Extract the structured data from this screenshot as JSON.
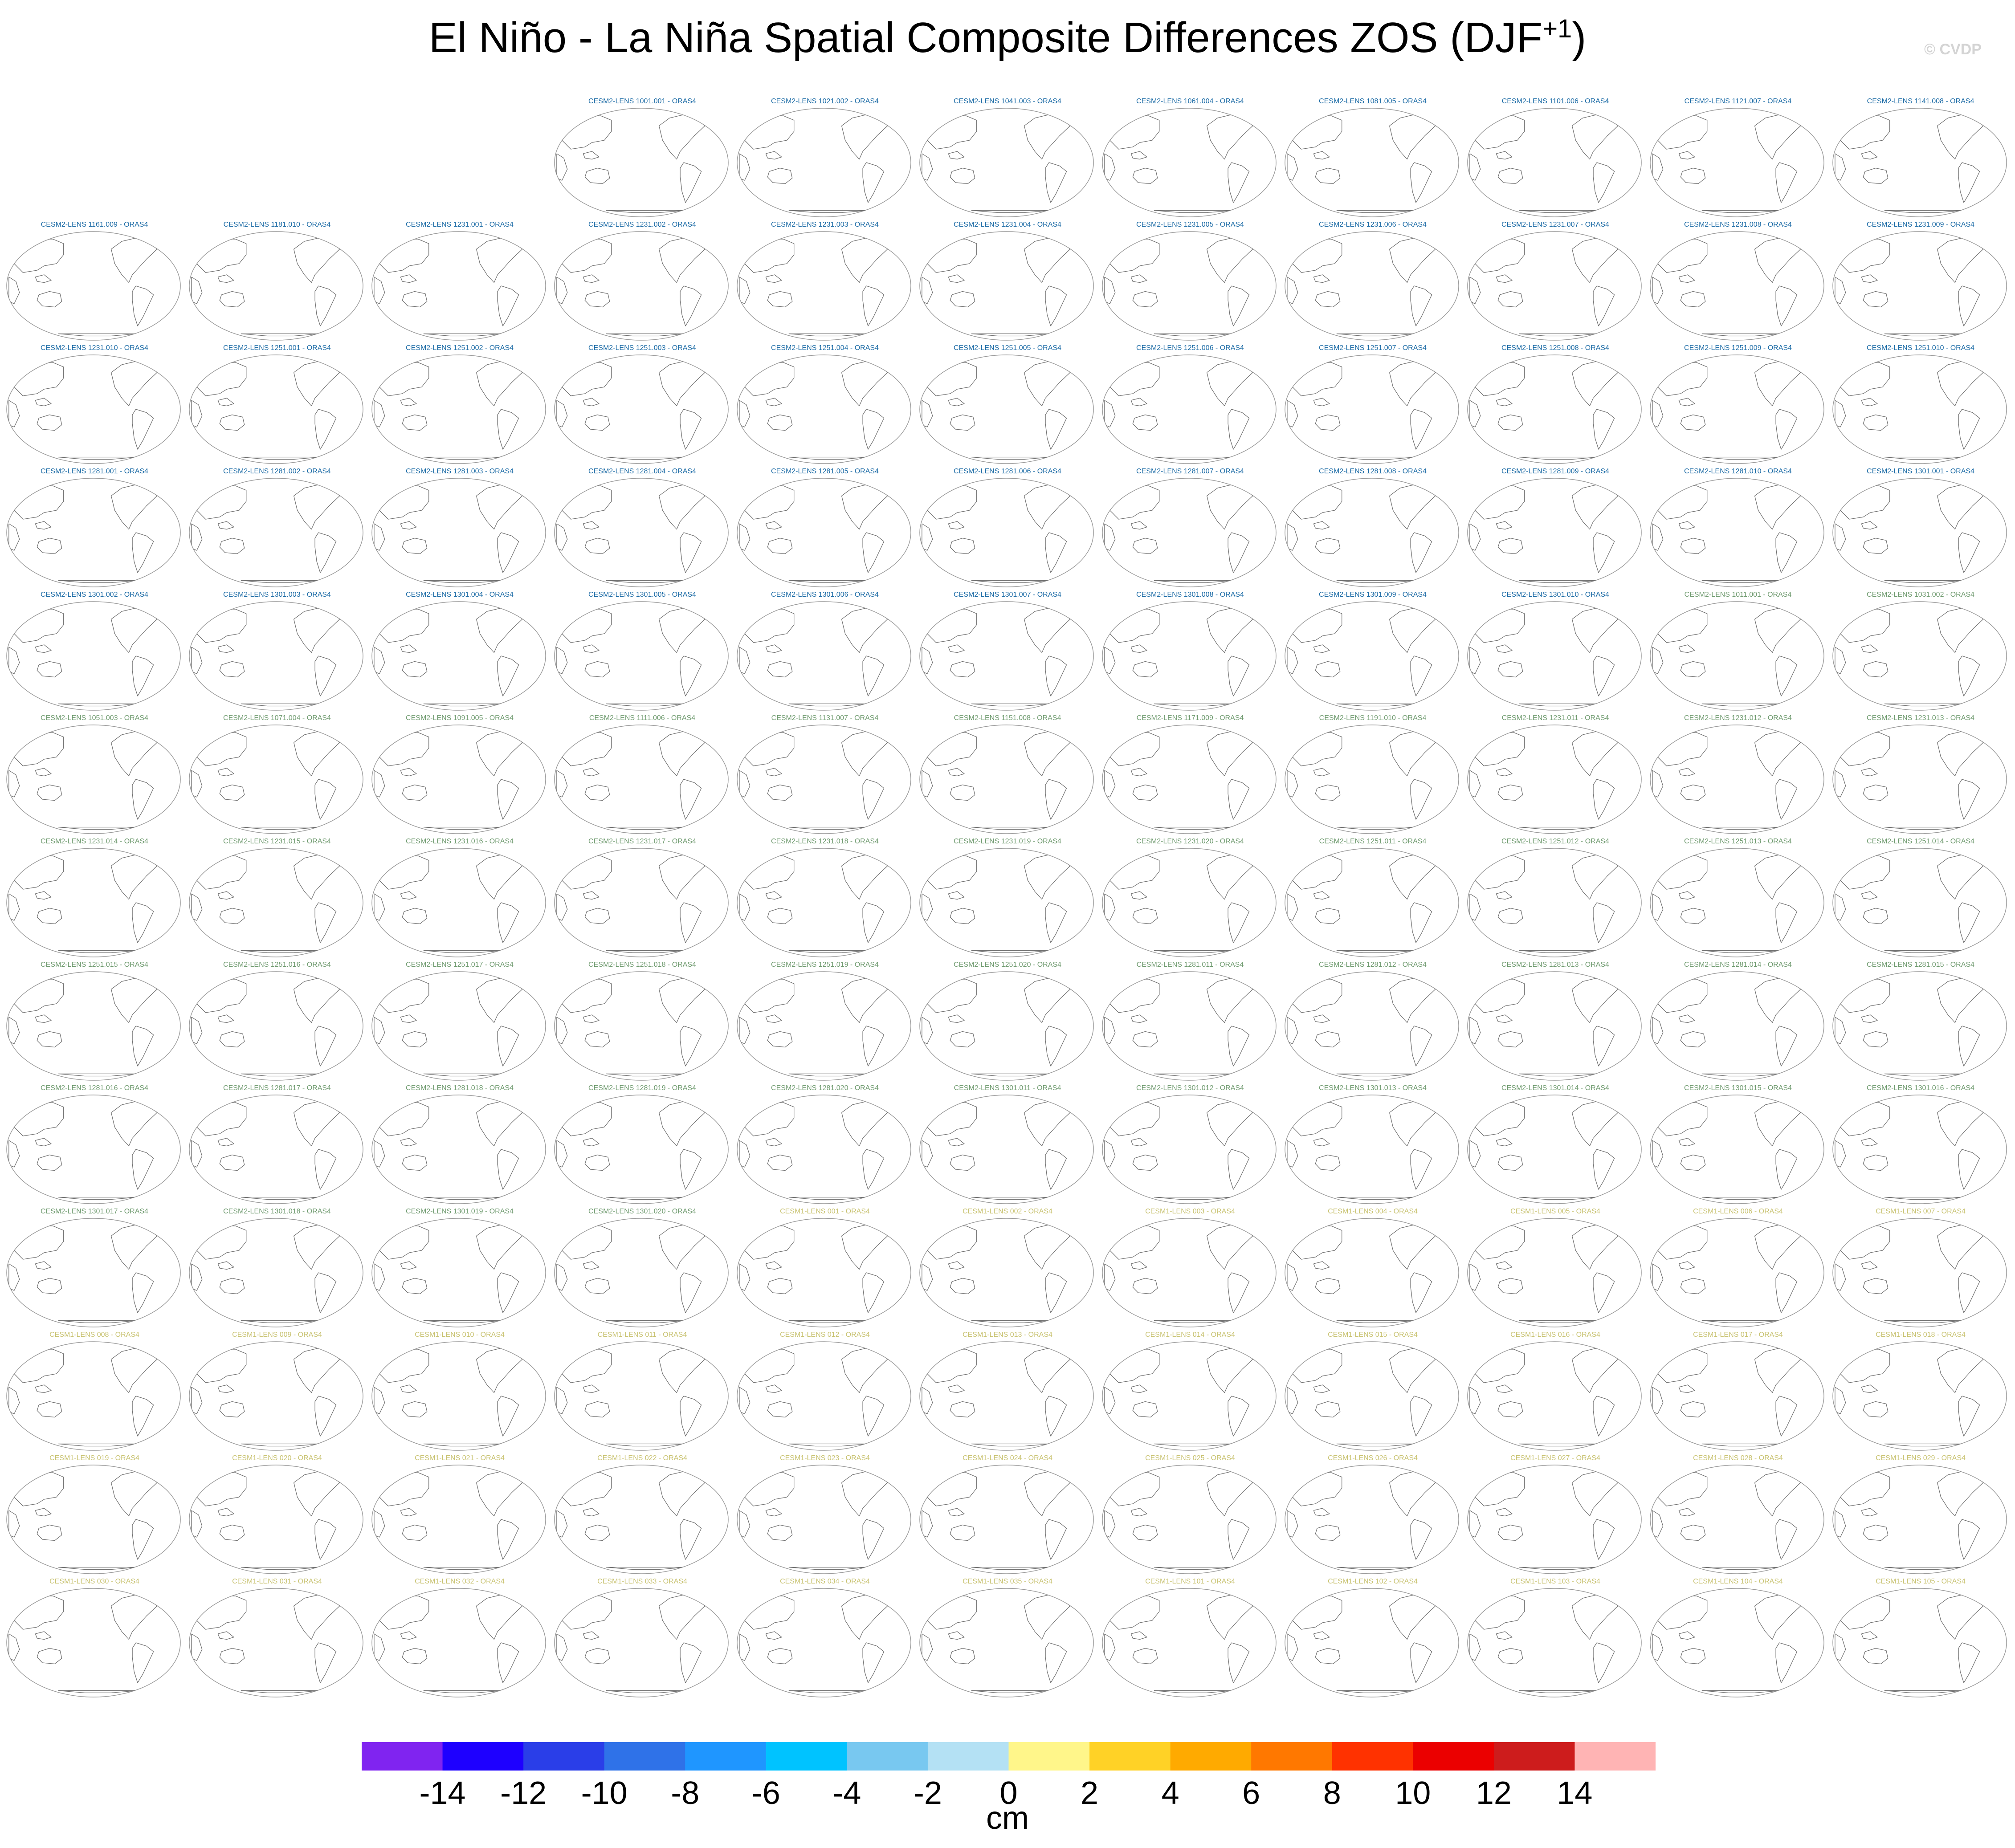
{
  "figure": {
    "title_main": "El Niño - La Niña Spatial Composite Differences ZOS (DJF",
    "title_sup": "+1",
    "title_end": ")",
    "copyright": "© CVDP"
  },
  "panel_colors": {
    "cesm2_first": "#1a6aa5",
    "cesm2_second": "#6e9a6e",
    "cesm1": "#c8c270",
    "coastline": "#6f6f6f",
    "border": "#9a9a9a"
  },
  "panels": [
    {
      "label": "CESM2-LENS 1001.001 - ORAS4",
      "group": "cesm2_first"
    },
    {
      "label": "CESM2-LENS 1021.002 - ORAS4",
      "group": "cesm2_first"
    },
    {
      "label": "CESM2-LENS 1041.003 - ORAS4",
      "group": "cesm2_first"
    },
    {
      "label": "CESM2-LENS 1061.004 - ORAS4",
      "group": "cesm2_first"
    },
    {
      "label": "CESM2-LENS 1081.005 - ORAS4",
      "group": "cesm2_first"
    },
    {
      "label": "CESM2-LENS 1101.006 - ORAS4",
      "group": "cesm2_first"
    },
    {
      "label": "CESM2-LENS 1121.007 - ORAS4",
      "group": "cesm2_first"
    },
    {
      "label": "CESM2-LENS 1141.008 - ORAS4",
      "group": "cesm2_first"
    },
    {
      "label": "CESM2-LENS 1161.009 - ORAS4",
      "group": "cesm2_first"
    },
    {
      "label": "CESM2-LENS 1181.010 - ORAS4",
      "group": "cesm2_first"
    },
    {
      "label": "CESM2-LENS 1231.001 - ORAS4",
      "group": "cesm2_first"
    },
    {
      "label": "CESM2-LENS 1231.002 - ORAS4",
      "group": "cesm2_first"
    },
    {
      "label": "CESM2-LENS 1231.003 - ORAS4",
      "group": "cesm2_first"
    },
    {
      "label": "CESM2-LENS 1231.004 - ORAS4",
      "group": "cesm2_first"
    },
    {
      "label": "CESM2-LENS 1231.005 - ORAS4",
      "group": "cesm2_first"
    },
    {
      "label": "CESM2-LENS 1231.006 - ORAS4",
      "group": "cesm2_first"
    },
    {
      "label": "CESM2-LENS 1231.007 - ORAS4",
      "group": "cesm2_first"
    },
    {
      "label": "CESM2-LENS 1231.008 - ORAS4",
      "group": "cesm2_first"
    },
    {
      "label": "CESM2-LENS 1231.009 - ORAS4",
      "group": "cesm2_first"
    },
    {
      "label": "CESM2-LENS 1231.010 - ORAS4",
      "group": "cesm2_first"
    },
    {
      "label": "CESM2-LENS 1251.001 - ORAS4",
      "group": "cesm2_first"
    },
    {
      "label": "CESM2-LENS 1251.002 - ORAS4",
      "group": "cesm2_first"
    },
    {
      "label": "CESM2-LENS 1251.003 - ORAS4",
      "group": "cesm2_first"
    },
    {
      "label": "CESM2-LENS 1251.004 - ORAS4",
      "group": "cesm2_first"
    },
    {
      "label": "CESM2-LENS 1251.005 - ORAS4",
      "group": "cesm2_first"
    },
    {
      "label": "CESM2-LENS 1251.006 - ORAS4",
      "group": "cesm2_first"
    },
    {
      "label": "CESM2-LENS 1251.007 - ORAS4",
      "group": "cesm2_first"
    },
    {
      "label": "CESM2-LENS 1251.008 - ORAS4",
      "group": "cesm2_first"
    },
    {
      "label": "CESM2-LENS 1251.009 - ORAS4",
      "group": "cesm2_first"
    },
    {
      "label": "CESM2-LENS 1251.010 - ORAS4",
      "group": "cesm2_first"
    },
    {
      "label": "CESM2-LENS 1281.001 - ORAS4",
      "group": "cesm2_first"
    },
    {
      "label": "CESM2-LENS 1281.002 - ORAS4",
      "group": "cesm2_first"
    },
    {
      "label": "CESM2-LENS 1281.003 - ORAS4",
      "group": "cesm2_first"
    },
    {
      "label": "CESM2-LENS 1281.004 - ORAS4",
      "group": "cesm2_first"
    },
    {
      "label": "CESM2-LENS 1281.005 - ORAS4",
      "group": "cesm2_first"
    },
    {
      "label": "CESM2-LENS 1281.006 - ORAS4",
      "group": "cesm2_first"
    },
    {
      "label": "CESM2-LENS 1281.007 - ORAS4",
      "group": "cesm2_first"
    },
    {
      "label": "CESM2-LENS 1281.008 - ORAS4",
      "group": "cesm2_first"
    },
    {
      "label": "CESM2-LENS 1281.009 - ORAS4",
      "group": "cesm2_first"
    },
    {
      "label": "CESM2-LENS 1281.010 - ORAS4",
      "group": "cesm2_first"
    },
    {
      "label": "CESM2-LENS 1301.001 - ORAS4",
      "group": "cesm2_first"
    },
    {
      "label": "CESM2-LENS 1301.002 - ORAS4",
      "group": "cesm2_first"
    },
    {
      "label": "CESM2-LENS 1301.003 - ORAS4",
      "group": "cesm2_first"
    },
    {
      "label": "CESM2-LENS 1301.004 - ORAS4",
      "group": "cesm2_first"
    },
    {
      "label": "CESM2-LENS 1301.005 - ORAS4",
      "group": "cesm2_first"
    },
    {
      "label": "CESM2-LENS 1301.006 - ORAS4",
      "group": "cesm2_first"
    },
    {
      "label": "CESM2-LENS 1301.007 - ORAS4",
      "group": "cesm2_first"
    },
    {
      "label": "CESM2-LENS 1301.008 - ORAS4",
      "group": "cesm2_first"
    },
    {
      "label": "CESM2-LENS 1301.009 - ORAS4",
      "group": "cesm2_first"
    },
    {
      "label": "CESM2-LENS 1301.010 - ORAS4",
      "group": "cesm2_first"
    },
    {
      "label": "CESM2-LENS 1011.001 - ORAS4",
      "group": "cesm2_second"
    },
    {
      "label": "CESM2-LENS 1031.002 - ORAS4",
      "group": "cesm2_second"
    },
    {
      "label": "CESM2-LENS 1051.003 - ORAS4",
      "group": "cesm2_second"
    },
    {
      "label": "CESM2-LENS 1071.004 - ORAS4",
      "group": "cesm2_second"
    },
    {
      "label": "CESM2-LENS 1091.005 - ORAS4",
      "group": "cesm2_second"
    },
    {
      "label": "CESM2-LENS 1111.006 - ORAS4",
      "group": "cesm2_second"
    },
    {
      "label": "CESM2-LENS 1131.007 - ORAS4",
      "group": "cesm2_second"
    },
    {
      "label": "CESM2-LENS 1151.008 - ORAS4",
      "group": "cesm2_second"
    },
    {
      "label": "CESM2-LENS 1171.009 - ORAS4",
      "group": "cesm2_second"
    },
    {
      "label": "CESM2-LENS 1191.010 - ORAS4",
      "group": "cesm2_second"
    },
    {
      "label": "CESM2-LENS 1231.011 - ORAS4",
      "group": "cesm2_second"
    },
    {
      "label": "CESM2-LENS 1231.012 - ORAS4",
      "group": "cesm2_second"
    },
    {
      "label": "CESM2-LENS 1231.013 - ORAS4",
      "group": "cesm2_second"
    },
    {
      "label": "CESM2-LENS 1231.014 - ORAS4",
      "group": "cesm2_second"
    },
    {
      "label": "CESM2-LENS 1231.015 - ORAS4",
      "group": "cesm2_second"
    },
    {
      "label": "CESM2-LENS 1231.016 - ORAS4",
      "group": "cesm2_second"
    },
    {
      "label": "CESM2-LENS 1231.017 - ORAS4",
      "group": "cesm2_second"
    },
    {
      "label": "CESM2-LENS 1231.018 - ORAS4",
      "group": "cesm2_second"
    },
    {
      "label": "CESM2-LENS 1231.019 - ORAS4",
      "group": "cesm2_second"
    },
    {
      "label": "CESM2-LENS 1231.020 - ORAS4",
      "group": "cesm2_second"
    },
    {
      "label": "CESM2-LENS 1251.011 - ORAS4",
      "group": "cesm2_second"
    },
    {
      "label": "CESM2-LENS 1251.012 - ORAS4",
      "group": "cesm2_second"
    },
    {
      "label": "CESM2-LENS 1251.013 - ORAS4",
      "group": "cesm2_second"
    },
    {
      "label": "CESM2-LENS 1251.014 - ORAS4",
      "group": "cesm2_second"
    },
    {
      "label": "CESM2-LENS 1251.015 - ORAS4",
      "group": "cesm2_second"
    },
    {
      "label": "CESM2-LENS 1251.016 - ORAS4",
      "group": "cesm2_second"
    },
    {
      "label": "CESM2-LENS 1251.017 - ORAS4",
      "group": "cesm2_second"
    },
    {
      "label": "CESM2-LENS 1251.018 - ORAS4",
      "group": "cesm2_second"
    },
    {
      "label": "CESM2-LENS 1251.019 - ORAS4",
      "group": "cesm2_second"
    },
    {
      "label": "CESM2-LENS 1251.020 - ORAS4",
      "group": "cesm2_second"
    },
    {
      "label": "CESM2-LENS 1281.011 - ORAS4",
      "group": "cesm2_second"
    },
    {
      "label": "CESM2-LENS 1281.012 - ORAS4",
      "group": "cesm2_second"
    },
    {
      "label": "CESM2-LENS 1281.013 - ORAS4",
      "group": "cesm2_second"
    },
    {
      "label": "CESM2-LENS 1281.014 - ORAS4",
      "group": "cesm2_second"
    },
    {
      "label": "CESM2-LENS 1281.015 - ORAS4",
      "group": "cesm2_second"
    },
    {
      "label": "CESM2-LENS 1281.016 - ORAS4",
      "group": "cesm2_second"
    },
    {
      "label": "CESM2-LENS 1281.017 - ORAS4",
      "group": "cesm2_second"
    },
    {
      "label": "CESM2-LENS 1281.018 - ORAS4",
      "group": "cesm2_second"
    },
    {
      "label": "CESM2-LENS 1281.019 - ORAS4",
      "group": "cesm2_second"
    },
    {
      "label": "CESM2-LENS 1281.020 - ORAS4",
      "group": "cesm2_second"
    },
    {
      "label": "CESM2-LENS 1301.011 - ORAS4",
      "group": "cesm2_second"
    },
    {
      "label": "CESM2-LENS 1301.012 - ORAS4",
      "group": "cesm2_second"
    },
    {
      "label": "CESM2-LENS 1301.013 - ORAS4",
      "group": "cesm2_second"
    },
    {
      "label": "CESM2-LENS 1301.014 - ORAS4",
      "group": "cesm2_second"
    },
    {
      "label": "CESM2-LENS 1301.015 - ORAS4",
      "group": "cesm2_second"
    },
    {
      "label": "CESM2-LENS 1301.016 - ORAS4",
      "group": "cesm2_second"
    },
    {
      "label": "CESM2-LENS 1301.017 - ORAS4",
      "group": "cesm2_second"
    },
    {
      "label": "CESM2-LENS 1301.018 - ORAS4",
      "group": "cesm2_second"
    },
    {
      "label": "CESM2-LENS 1301.019 - ORAS4",
      "group": "cesm2_second"
    },
    {
      "label": "CESM2-LENS 1301.020 - ORAS4",
      "group": "cesm2_second"
    },
    {
      "label": "CESM1-LENS 001 - ORAS4",
      "group": "cesm1"
    },
    {
      "label": "CESM1-LENS 002 - ORAS4",
      "group": "cesm1"
    },
    {
      "label": "CESM1-LENS 003 - ORAS4",
      "group": "cesm1"
    },
    {
      "label": "CESM1-LENS 004 - ORAS4",
      "group": "cesm1"
    },
    {
      "label": "CESM1-LENS 005 - ORAS4",
      "group": "cesm1"
    },
    {
      "label": "CESM1-LENS 006 - ORAS4",
      "group": "cesm1"
    },
    {
      "label": "CESM1-LENS 007 - ORAS4",
      "group": "cesm1"
    },
    {
      "label": "CESM1-LENS 008 - ORAS4",
      "group": "cesm1"
    },
    {
      "label": "CESM1-LENS 009 - ORAS4",
      "group": "cesm1"
    },
    {
      "label": "CESM1-LENS 010 - ORAS4",
      "group": "cesm1"
    },
    {
      "label": "CESM1-LENS 011 - ORAS4",
      "group": "cesm1"
    },
    {
      "label": "CESM1-LENS 012 - ORAS4",
      "group": "cesm1"
    },
    {
      "label": "CESM1-LENS 013 - ORAS4",
      "group": "cesm1"
    },
    {
      "label": "CESM1-LENS 014 - ORAS4",
      "group": "cesm1"
    },
    {
      "label": "CESM1-LENS 015 - ORAS4",
      "group": "cesm1"
    },
    {
      "label": "CESM1-LENS 016 - ORAS4",
      "group": "cesm1"
    },
    {
      "label": "CESM1-LENS 017 - ORAS4",
      "group": "cesm1"
    },
    {
      "label": "CESM1-LENS 018 - ORAS4",
      "group": "cesm1"
    },
    {
      "label": "CESM1-LENS 019 - ORAS4",
      "group": "cesm1"
    },
    {
      "label": "CESM1-LENS 020 - ORAS4",
      "group": "cesm1"
    },
    {
      "label": "CESM1-LENS 021 - ORAS4",
      "group": "cesm1"
    },
    {
      "label": "CESM1-LENS 022 - ORAS4",
      "group": "cesm1"
    },
    {
      "label": "CESM1-LENS 023 - ORAS4",
      "group": "cesm1"
    },
    {
      "label": "CESM1-LENS 024 - ORAS4",
      "group": "cesm1"
    },
    {
      "label": "CESM1-LENS 025 - ORAS4",
      "group": "cesm1"
    },
    {
      "label": "CESM1-LENS 026 - ORAS4",
      "group": "cesm1"
    },
    {
      "label": "CESM1-LENS 027 - ORAS4",
      "group": "cesm1"
    },
    {
      "label": "CESM1-LENS 028 - ORAS4",
      "group": "cesm1"
    },
    {
      "label": "CESM1-LENS 029 - ORAS4",
      "group": "cesm1"
    },
    {
      "label": "CESM1-LENS 030 - ORAS4",
      "group": "cesm1"
    },
    {
      "label": "CESM1-LENS 031 - ORAS4",
      "group": "cesm1"
    },
    {
      "label": "CESM1-LENS 032 - ORAS4",
      "group": "cesm1"
    },
    {
      "label": "CESM1-LENS 033 - ORAS4",
      "group": "cesm1"
    },
    {
      "label": "CESM1-LENS 034 - ORAS4",
      "group": "cesm1"
    },
    {
      "label": "CESM1-LENS 035 - ORAS4",
      "group": "cesm1"
    },
    {
      "label": "CESM1-LENS 101 - ORAS4",
      "group": "cesm1"
    },
    {
      "label": "CESM1-LENS 102 - ORAS4",
      "group": "cesm1"
    },
    {
      "label": "CESM1-LENS 103 - ORAS4",
      "group": "cesm1"
    },
    {
      "label": "CESM1-LENS 104 - ORAS4",
      "group": "cesm1"
    },
    {
      "label": "CESM1-LENS 105 - ORAS4",
      "group": "cesm1"
    }
  ],
  "colorbar": {
    "colors": [
      "#8024f0",
      "#1e00ff",
      "#2a3ee8",
      "#2f72e8",
      "#1f96ff",
      "#00c3ff",
      "#78c8f0",
      "#b4e1f4",
      "#fff68a",
      "#ffd226",
      "#ffaa00",
      "#ff7800",
      "#ff3200",
      "#eb0000",
      "#cd1c1c",
      "#ffb4b4"
    ],
    "tick_labels": [
      "-14",
      "-12",
      "-10",
      "-8",
      "-6",
      "-4",
      "-2",
      "0",
      "2",
      "4",
      "6",
      "8",
      "10",
      "12",
      "14"
    ],
    "units": "cm"
  }
}
